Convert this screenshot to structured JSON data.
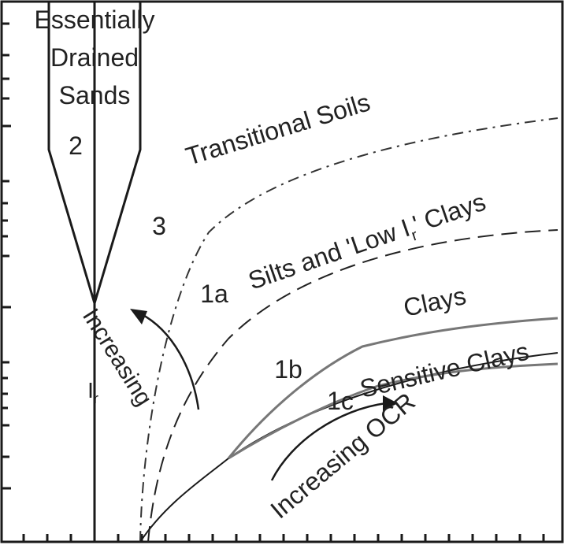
{
  "diagram": {
    "zones": [
      {
        "id": "2",
        "number": "2",
        "name_lines": [
          "Essentially",
          "Drained",
          "Sands"
        ]
      },
      {
        "id": "3",
        "number": "3",
        "name": "Transitional Soils"
      },
      {
        "id": "1a",
        "number": "1a",
        "name": "Silts and 'Low I",
        "subscript": "r",
        "name_tail": "' Clays"
      },
      {
        "id": "clays",
        "name": "Clays"
      },
      {
        "id": "1b",
        "number": "1b"
      },
      {
        "id": "1c",
        "number": "1c",
        "name": "Sensitive Clays"
      }
    ],
    "trends": {
      "ir_text": "Increasing",
      "ir_symbol": "I",
      "ir_subscript": "r",
      "ocr_text": "Increasing OCR"
    },
    "colors": {
      "line": "#1a1a1a",
      "gray_line": "#777777",
      "background": "#ffffff"
    }
  }
}
